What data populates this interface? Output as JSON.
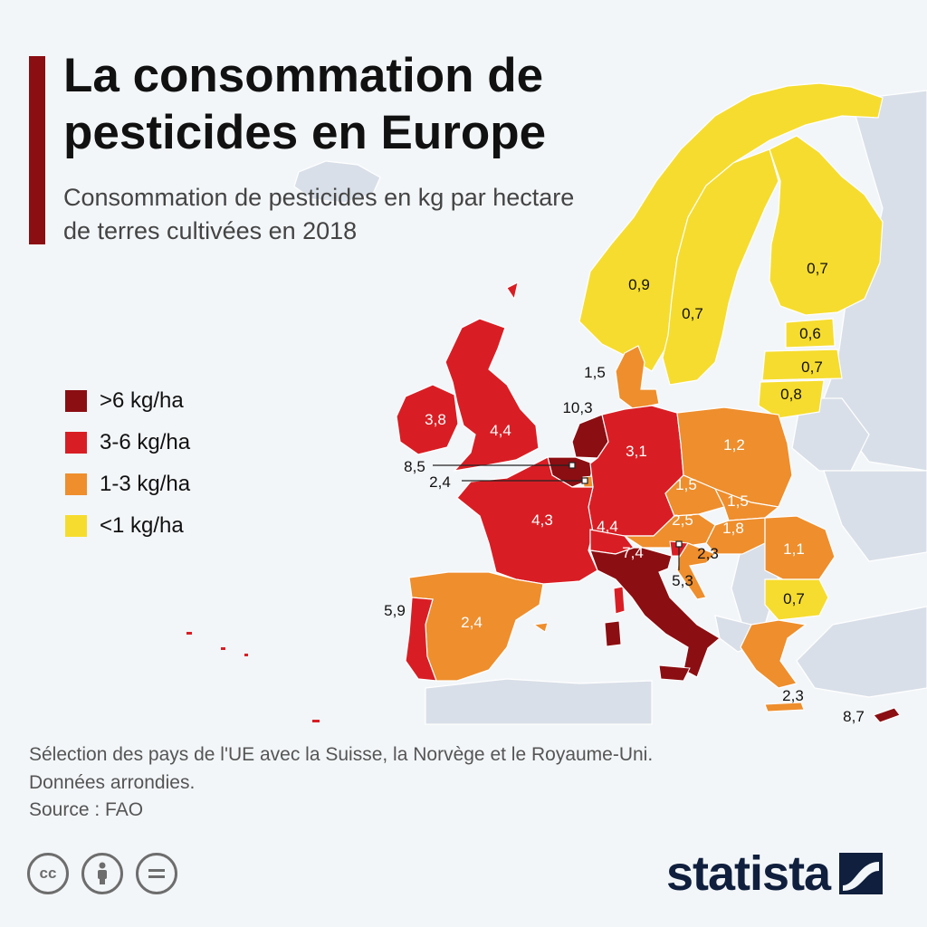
{
  "title": "La consommation de pesticides en Europe",
  "subtitle": "Consommation de pesticides en kg par hectare de terres cultivées en 2018",
  "legend": [
    {
      "label": ">6 kg/ha",
      "color": "#8b0e12"
    },
    {
      "label": "3-6 kg/ha",
      "color": "#d81e24"
    },
    {
      "label": "1-3 kg/ha",
      "color": "#ee8e2d"
    },
    {
      "label": "<1 kg/ha",
      "color": "#f6dc2e"
    }
  ],
  "values": {
    "norway": "0,9",
    "sweden": "0,7",
    "finland": "0,7",
    "estonia": "0,6",
    "latvia": "0,7",
    "lithuania": "0,8",
    "denmark": "1,5",
    "ireland": "3,8",
    "uk": "4,4",
    "netherlands": "10,3",
    "belgium": "8,5",
    "luxembourg": "2,4",
    "germany": "3,1",
    "poland": "1,2",
    "czechia": "1,5",
    "slovakia": "1,5",
    "austria": "2,5",
    "hungary": "1,8",
    "romania": "1,1",
    "bulgaria": "0,7",
    "france": "4,3",
    "switzerland": "4,4",
    "italy": "7,4",
    "slovenia": "5,3",
    "croatia": "2,3",
    "portugal": "5,9",
    "spain": "2,4",
    "greece": "2,3",
    "cyprus": "8,7"
  },
  "footnote": {
    "line1": "Sélection des pays de l'UE avec la Suisse, la Norvège et le Royaume-Uni.",
    "line2": "Données arrondies."
  },
  "source": "Source : FAO",
  "brand": "statista",
  "cc_icons": [
    "cc-icon",
    "attribution-icon",
    "no-derivatives-icon"
  ]
}
